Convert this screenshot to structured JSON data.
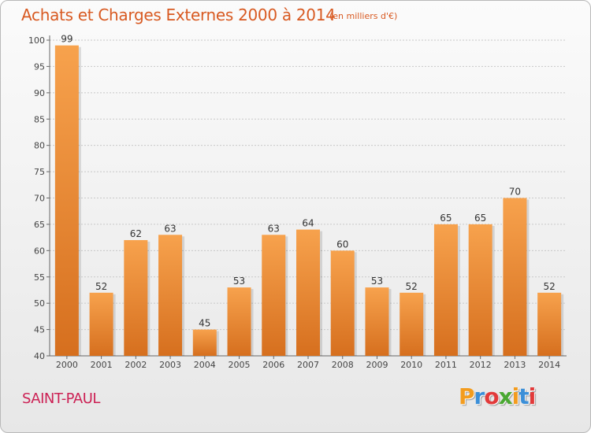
{
  "chart_data": {
    "type": "bar",
    "title": "Achats et Charges Externes 2000 à 2014",
    "subtitle": "(en milliers d'€)",
    "categories": [
      "2000",
      "2001",
      "2002",
      "2003",
      "2004",
      "2005",
      "2006",
      "2007",
      "2008",
      "2009",
      "2010",
      "2011",
      "2012",
      "2013",
      "2014"
    ],
    "values": [
      99,
      52,
      62,
      63,
      45,
      53,
      63,
      64,
      60,
      53,
      52,
      65,
      65,
      70,
      52
    ],
    "ylim": [
      40,
      100
    ],
    "yticks": [
      40,
      45,
      50,
      55,
      60,
      65,
      70,
      75,
      80,
      85,
      90,
      95,
      100
    ],
    "grid": true,
    "legend": "none",
    "bar_color_top": "#f7a24d",
    "bar_color_bottom": "#d66f1e"
  },
  "footer": {
    "city": "SAINT-PAUL",
    "logo_letters": [
      "P",
      "r",
      "o",
      "x",
      "i",
      "t",
      "i"
    ],
    "logo_colors": [
      "#f39c1e",
      "#3b8fd8",
      "#e23a3a",
      "#4aa832",
      "#f39c1e",
      "#3b8fd8",
      "#e23a3a"
    ]
  }
}
